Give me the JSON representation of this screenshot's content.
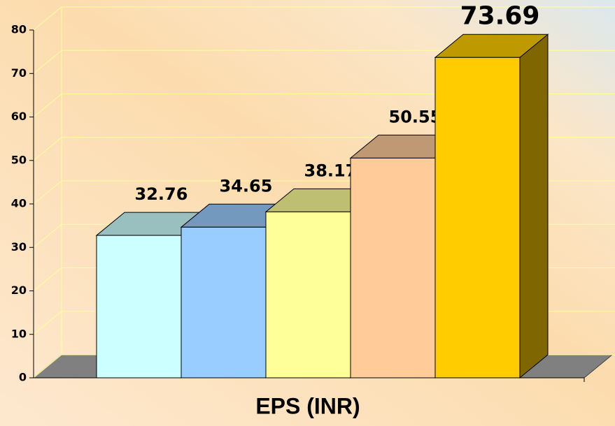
{
  "chart_data": {
    "type": "bar3d",
    "x_label": "EPS (INR)",
    "categories": [
      null,
      null,
      null,
      null,
      null
    ],
    "values": [
      32.76,
      34.65,
      38.17,
      50.55,
      73.69
    ],
    "colors": [
      "#ccffff",
      "#99ccff",
      "#ffff99",
      "#ffcc99",
      "#ffcc00"
    ],
    "ylim": [
      0,
      80
    ],
    "yticks": [
      0,
      10,
      20,
      30,
      40,
      50,
      60,
      70,
      80
    ],
    "grid": true
  }
}
